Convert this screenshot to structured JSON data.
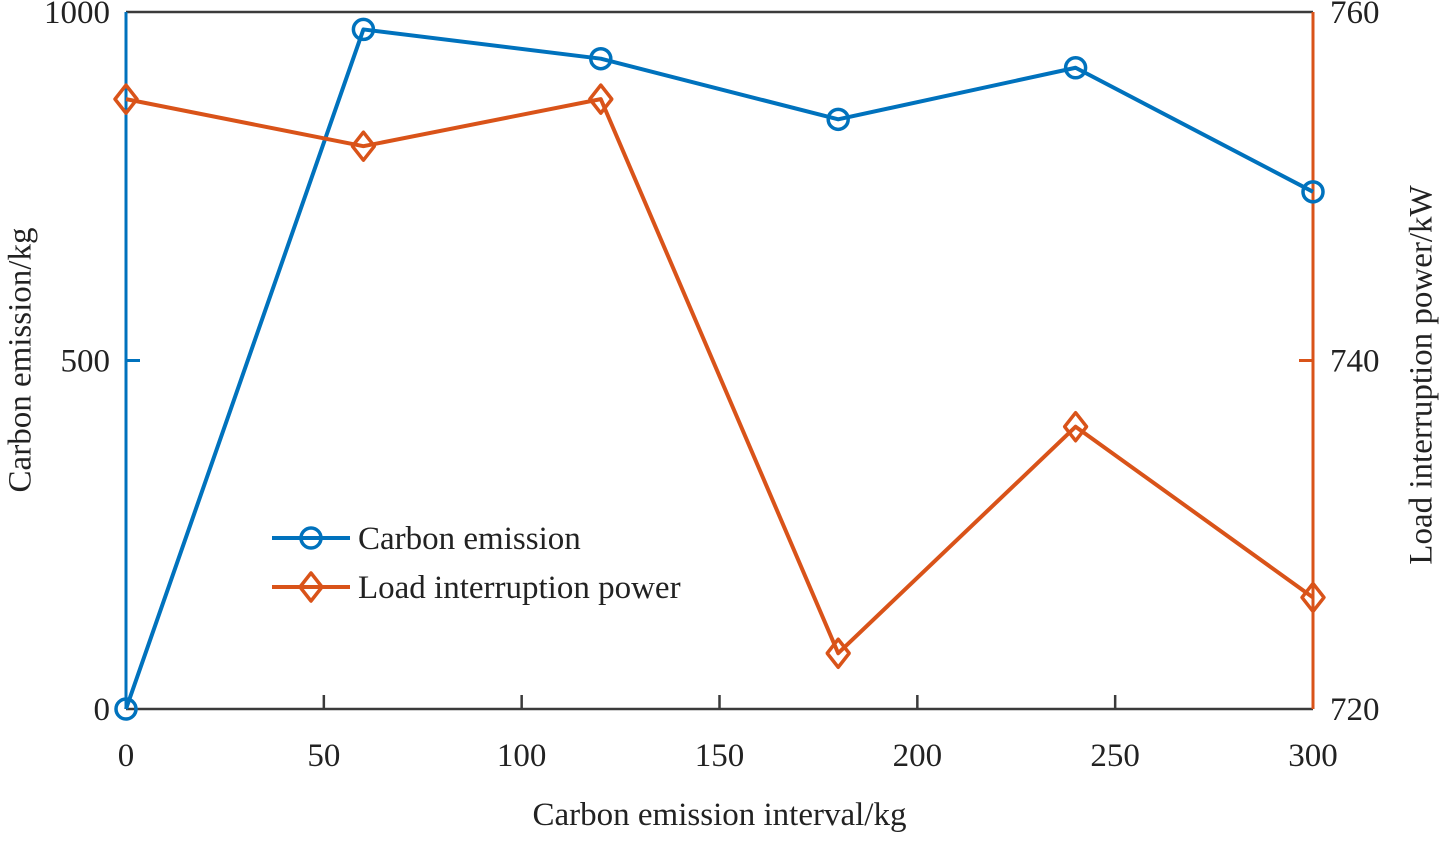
{
  "chart_data": {
    "type": "line",
    "title": "",
    "xlabel": "Carbon emission interval/kg",
    "x_ticks": [
      0,
      50,
      100,
      150,
      200,
      250,
      300
    ],
    "xlim": [
      0,
      300
    ],
    "grid": false,
    "legend_position": "inside lower-left, no box",
    "left_axis": {
      "label": "Carbon emission/kg",
      "ticks": [
        0,
        500,
        1000
      ],
      "lim": [
        0,
        1000
      ],
      "color": "#0072BD"
    },
    "right_axis": {
      "label": "Load interruption power/kW",
      "ticks": [
        720,
        740,
        760
      ],
      "lim": [
        720,
        760
      ],
      "color": "#D95319"
    },
    "series": [
      {
        "name": "Carbon emission",
        "axis": "left",
        "color": "#0072BD",
        "marker": "circle",
        "x": [
          0,
          60,
          120,
          180,
          240,
          300
        ],
        "values": [
          0,
          975,
          933,
          846,
          920,
          742
        ]
      },
      {
        "name": "Load interruption power",
        "axis": "right",
        "color": "#D95319",
        "marker": "diamond",
        "x": [
          0,
          60,
          120,
          180,
          240,
          300
        ],
        "values": [
          755.0,
          752.3,
          755.0,
          723.2,
          736.2,
          726.4
        ]
      }
    ],
    "frame_color": "#3b3b3b",
    "text_color": "#222222"
  }
}
